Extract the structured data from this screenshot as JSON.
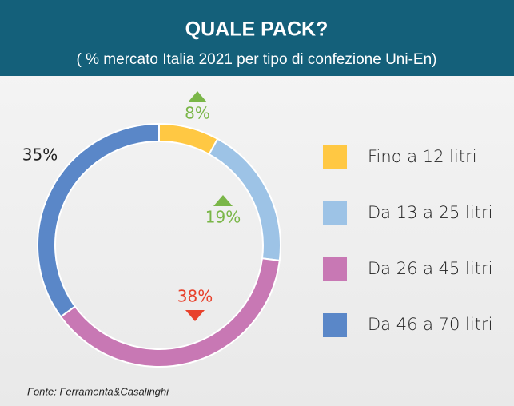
{
  "chart_data": {
    "type": "donut",
    "title": "QUALE PACK?",
    "subtitle": "( % mercato Italia 2021 per tipo di confezione Uni-En)",
    "categories": [
      "Fino a 12 litri",
      "Da 13 a 25 litri",
      "Da 26 a 45 litri",
      "Da 46 a 70 litri"
    ],
    "values": [
      8,
      19,
      38,
      35
    ],
    "value_labels": [
      "8%",
      "19%",
      "38%",
      "35%"
    ],
    "colors": [
      "#ffc843",
      "#9dc3e6",
      "#c878b4",
      "#5a87c8"
    ],
    "label_colors": [
      "#7ab648",
      "#7ab648",
      "#e8412c",
      "#222222"
    ],
    "trends": [
      "up",
      "up",
      "down",
      null
    ],
    "source": "Fonte: Ferramenta&Casalinghi"
  }
}
